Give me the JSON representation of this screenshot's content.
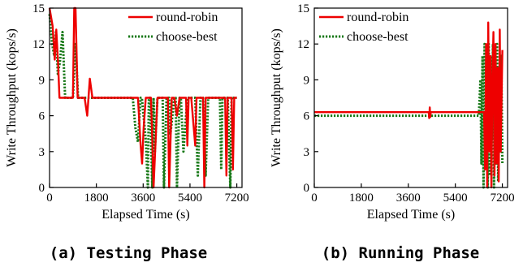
{
  "chart_data": [
    {
      "type": "line",
      "caption": "(a) Testing Phase",
      "xlabel": "Elapsed Time (s)",
      "ylabel": "Write Throughput (kops/s)",
      "xlim": [
        0,
        7400
      ],
      "ylim": [
        0,
        15
      ],
      "xticks": [
        0,
        1800,
        3600,
        5400,
        7200
      ],
      "yticks": [
        0,
        3,
        6,
        9,
        12,
        15
      ],
      "legend_position": "top-right",
      "series": [
        {
          "name": "round-robin",
          "color": "#ee0000",
          "style": "solid",
          "x": [
            0,
            120,
            200,
            260,
            330,
            380,
            450,
            550,
            650,
            800,
            900,
            950,
            1000,
            1080,
            1200,
            1350,
            1450,
            1550,
            1650,
            1700,
            2000,
            2500,
            3000,
            3300,
            3400,
            3500,
            3560,
            3620,
            3700,
            3780,
            3860,
            3900,
            3950,
            4000,
            4150,
            4200,
            4250,
            4300,
            4500,
            4550,
            4600,
            4700,
            4740,
            4800,
            4900,
            5000,
            5200,
            5250,
            5300,
            5350,
            5450,
            5600,
            5650,
            5700,
            5750,
            5900,
            5950,
            6000,
            6100,
            6200,
            6300,
            6320,
            6400,
            6600,
            6700,
            6750,
            6800,
            6850,
            6950,
            7000,
            7050,
            7100,
            7200
          ],
          "y": [
            15,
            13.5,
            10.7,
            13.2,
            10.3,
            7.5,
            7.5,
            7.5,
            7.5,
            7.5,
            7.5,
            15,
            15,
            7.5,
            7.5,
            7.5,
            6,
            9.1,
            7.5,
            7.5,
            7.5,
            7.5,
            7.5,
            7.5,
            7.5,
            3.6,
            2,
            5,
            7.5,
            7.5,
            7.5,
            7.5,
            4,
            0,
            7.5,
            7.5,
            7.5,
            7.5,
            7.5,
            7.5,
            0,
            7.5,
            7.5,
            7.5,
            6,
            7.5,
            7.5,
            7.5,
            3.5,
            7.5,
            7.5,
            3.5,
            7.5,
            7.5,
            7.5,
            7.5,
            0,
            7.5,
            7.5,
            7.5,
            7.5,
            7.5,
            7.5,
            7.5,
            7.5,
            7.5,
            1,
            7.5,
            7.5,
            7.5,
            1.5,
            7.5,
            7.5
          ]
        },
        {
          "name": "choose-best",
          "color": "#1a7a1a",
          "style": "dotted",
          "x": [
            0,
            100,
            180,
            250,
            320,
            400,
            500,
            600,
            700,
            900,
            1000,
            1100,
            1300,
            1500,
            1700,
            2000,
            2500,
            3000,
            3200,
            3300,
            3400,
            3500,
            3550,
            3700,
            3780,
            3820,
            3870,
            3950,
            4000,
            4050,
            4150,
            4300,
            4350,
            4400,
            4500,
            4600,
            4650,
            4800,
            4850,
            4900,
            5000,
            5050,
            5150,
            5300,
            5400,
            5450,
            5600,
            5700,
            5800,
            5850,
            5900,
            6000,
            6100,
            6150,
            6200,
            6400,
            6550,
            6600,
            6650,
            6800,
            6850,
            6950,
            7000,
            7050,
            7200
          ],
          "y": [
            14.5,
            12,
            11,
            13,
            9.5,
            10.5,
            13,
            7.5,
            7.5,
            7.5,
            12,
            7.5,
            7.5,
            7.5,
            7.5,
            7.5,
            7.5,
            7.5,
            7.5,
            5,
            3.8,
            7.5,
            7.5,
            4,
            0,
            7.5,
            7.5,
            0,
            7.5,
            3,
            7.5,
            7.5,
            7.5,
            0,
            7.5,
            7.5,
            4.5,
            7.5,
            7.5,
            0,
            7.5,
            7.5,
            3,
            7.5,
            7.5,
            7.5,
            7.5,
            1,
            7.5,
            7.5,
            7.5,
            1,
            7.5,
            7.5,
            7.5,
            7.5,
            7.5,
            1.5,
            7.5,
            7.5,
            7.5,
            0,
            7.5,
            7.5,
            7.5
          ]
        }
      ]
    },
    {
      "type": "line",
      "caption": "(b) Running Phase",
      "xlabel": "Elapsed Time (s)",
      "ylabel": "Write Throughput (kops/s)",
      "xlim": [
        0,
        7400
      ],
      "ylim": [
        0,
        15
      ],
      "xticks": [
        0,
        1800,
        3600,
        5400,
        7200
      ],
      "yticks": [
        0,
        3,
        6,
        9,
        12,
        15
      ],
      "legend_position": "top-left",
      "series": [
        {
          "name": "round-robin",
          "color": "#ee0000",
          "style": "solid",
          "x": [
            0,
            4380,
            4400,
            4420,
            4440,
            4460,
            6300,
            6500,
            6540,
            6580,
            6620,
            6660,
            6700,
            6740,
            6780,
            6820,
            6860,
            6900,
            6940,
            6980,
            7020,
            7060,
            7100,
            7140,
            7200
          ],
          "y": [
            6.3,
            6.3,
            5.8,
            6.7,
            5.9,
            6.3,
            6.3,
            6.3,
            1.5,
            12,
            0,
            13.8,
            3,
            11,
            0,
            9,
            13,
            1,
            12,
            2,
            10,
            0.5,
            13.2,
            3,
            11.5
          ]
        },
        {
          "name": "choose-best",
          "color": "#1a7a1a",
          "style": "dotted",
          "x": [
            0,
            6300,
            6360,
            6400,
            6440,
            6480,
            6520,
            6560,
            6600,
            6640,
            6680,
            6720,
            6760,
            6800,
            6840,
            6880,
            6920,
            6960,
            7000,
            7040,
            7080,
            7120,
            7160,
            7200
          ],
          "y": [
            6.0,
            6.0,
            9,
            2,
            11,
            0,
            12,
            3,
            10,
            0,
            12,
            1,
            11,
            4,
            12,
            0,
            10,
            2,
            12,
            0.5,
            9,
            3,
            11,
            2
          ]
        }
      ]
    }
  ]
}
